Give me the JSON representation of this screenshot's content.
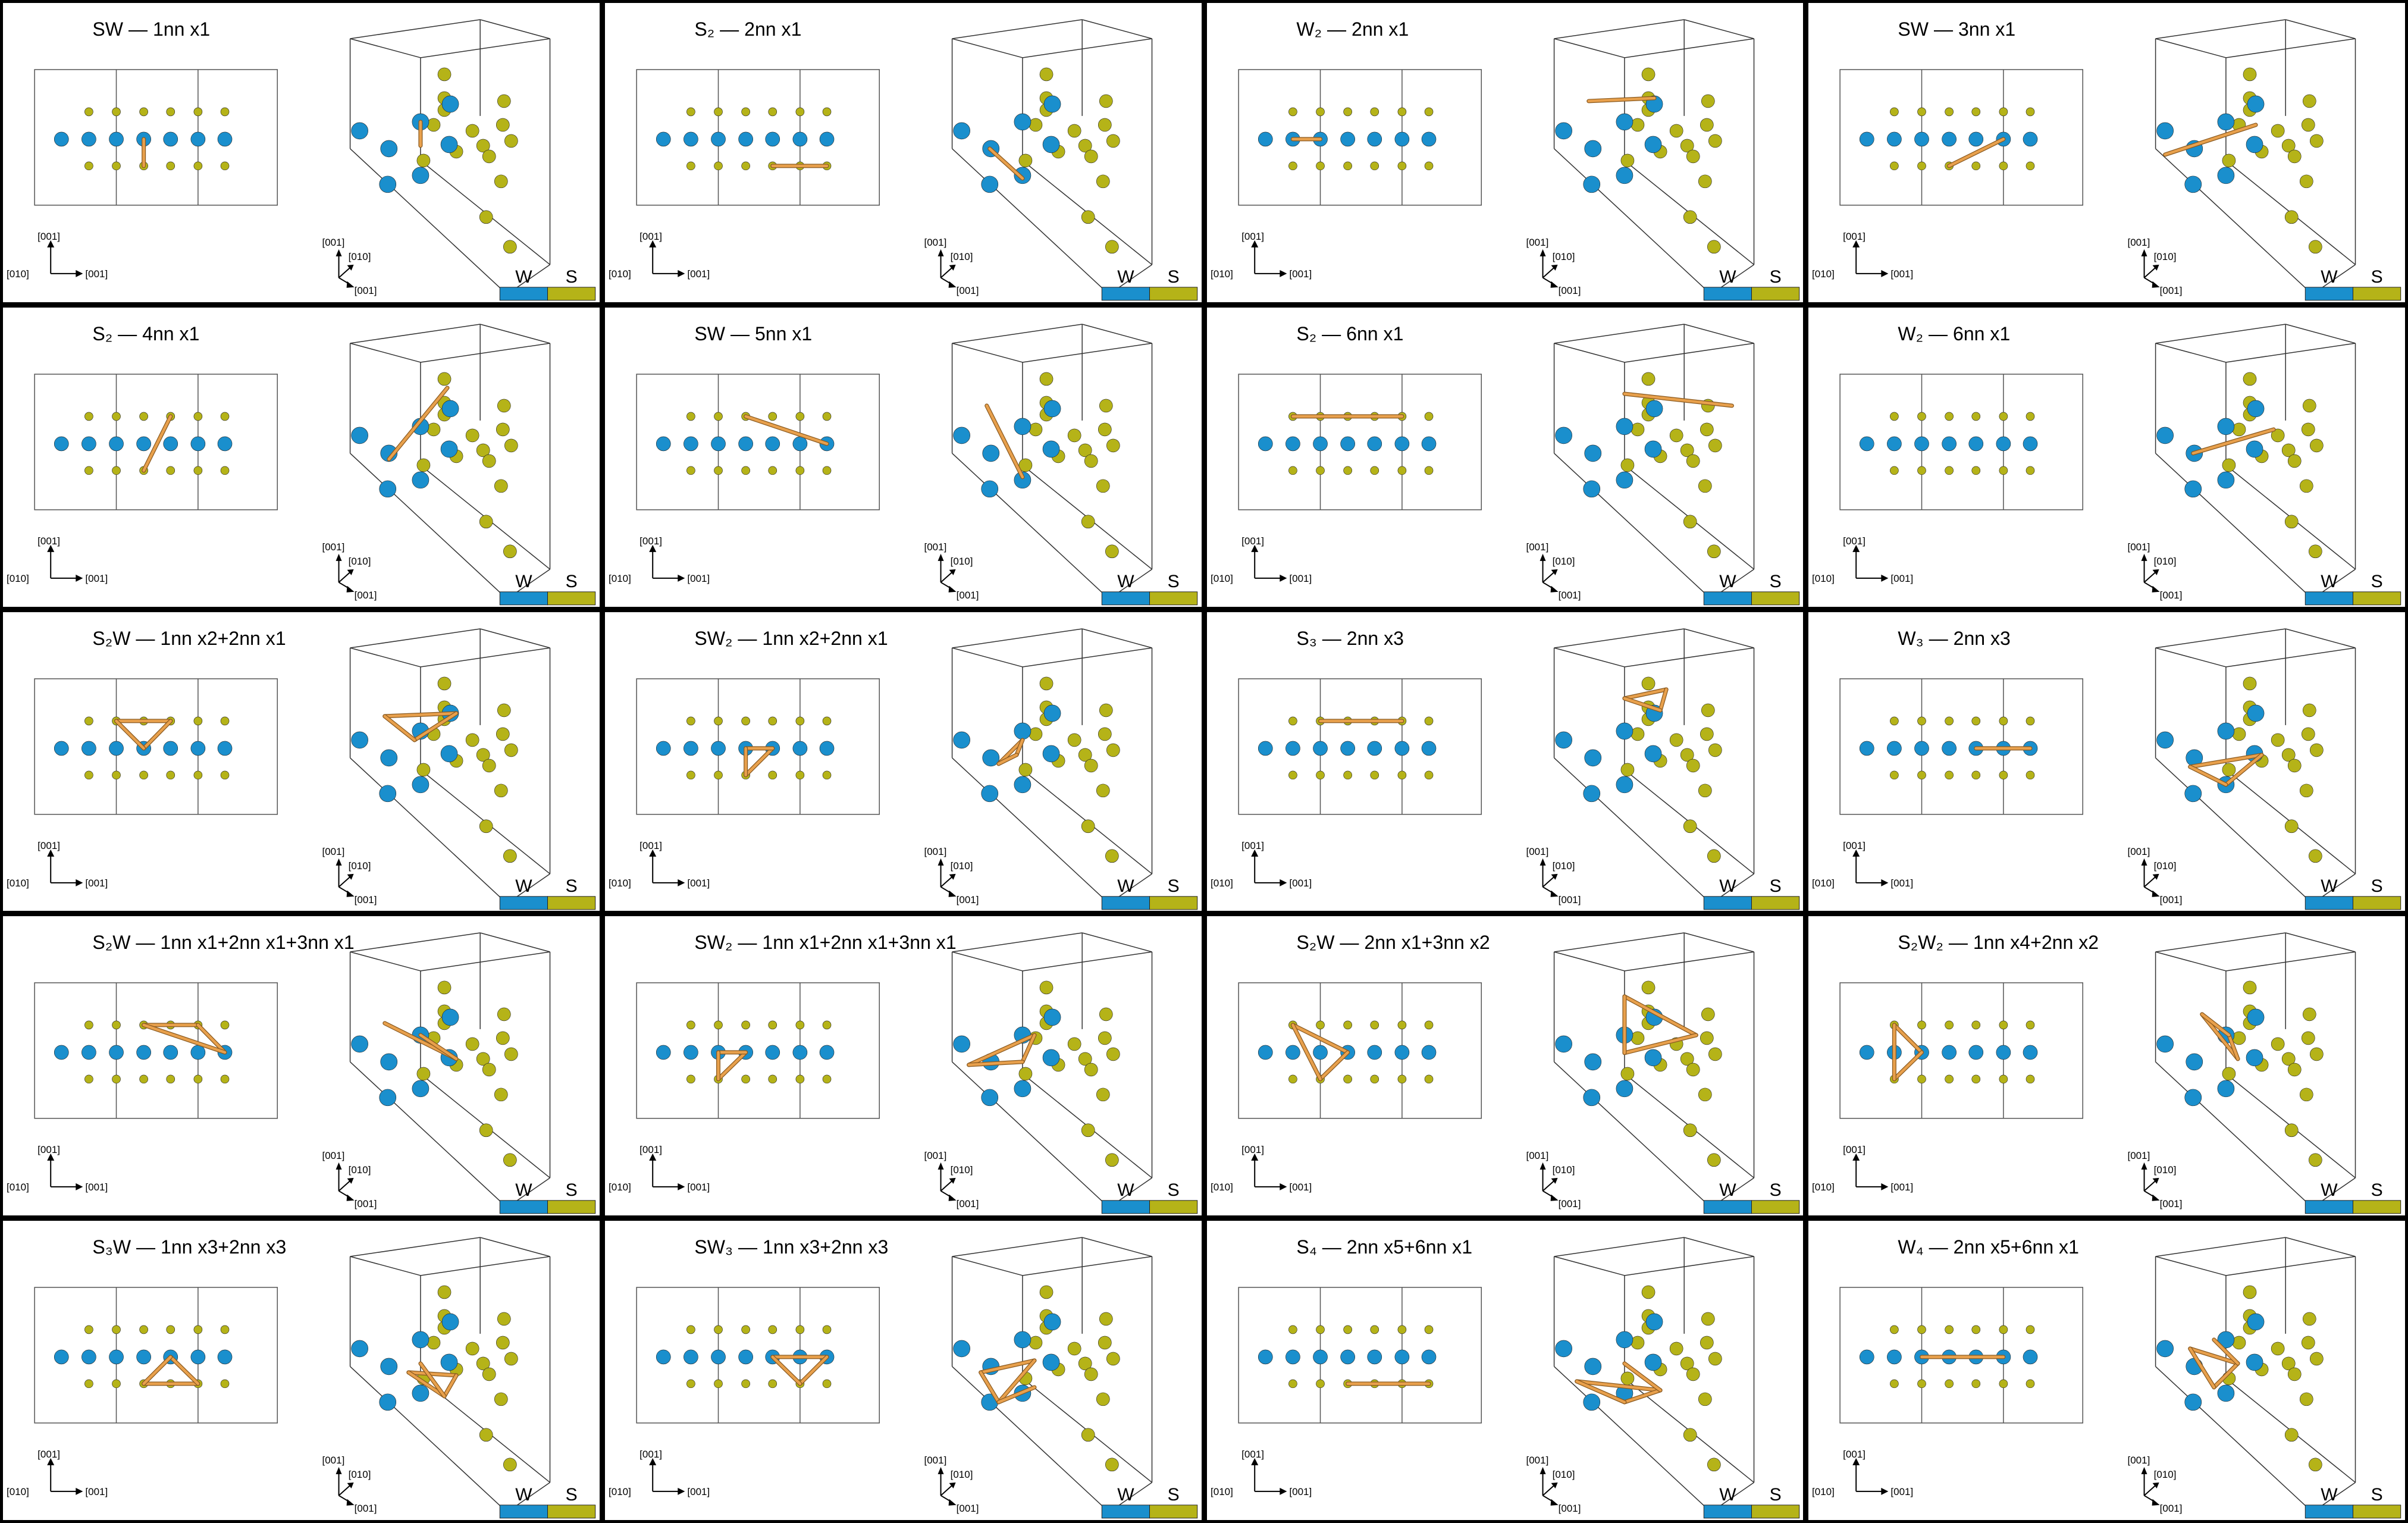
{
  "legend": {
    "w_label": "W",
    "s_label": "S",
    "w_color": "#1a8fcd",
    "s_color": "#b5b318",
    "bond_color": "#e8a04c"
  },
  "axes_2d": {
    "vertical": "[001]",
    "horizontal": "[001]",
    "left": "[010]"
  },
  "axes_3d": {
    "up": "[001]",
    "diag": "[010]",
    "right": "[001]"
  },
  "panels": [
    {
      "title": "SW — 1nn x1"
    },
    {
      "title": "S₂ — 2nn x1"
    },
    {
      "title": "W₂ — 2nn x1"
    },
    {
      "title": "SW — 3nn x1"
    },
    {
      "title": "S₂ — 4nn x1"
    },
    {
      "title": "SW — 5nn x1"
    },
    {
      "title": "S₂ — 6nn x1"
    },
    {
      "title": "W₂ — 6nn x1"
    },
    {
      "title": "S₂W — 1nn x2+2nn x1"
    },
    {
      "title": "SW₂ — 1nn x2+2nn x1"
    },
    {
      "title": "S₃ — 2nn x3"
    },
    {
      "title": "W₃ — 2nn x3"
    },
    {
      "title": "S₂W — 1nn x1+2nn x1+3nn x1"
    },
    {
      "title": "SW₂ — 1nn x1+2nn x1+3nn x1"
    },
    {
      "title": "S₂W — 2nn x1+3nn x2"
    },
    {
      "title": "S₂W₂ — 1nn x4+2nn x2"
    },
    {
      "title": "S₃W — 1nn x3+2nn x3"
    },
    {
      "title": "SW₃ — 1nn x3+2nn x3"
    },
    {
      "title": "S₄ — 2nn x5+6nn x1"
    },
    {
      "title": "W₄ — 2nn x5+6nn x1"
    }
  ]
}
